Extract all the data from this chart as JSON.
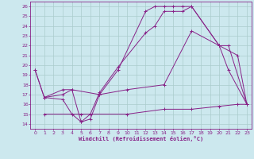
{
  "xlabel": "Windchill (Refroidissement éolien,°C)",
  "background_color": "#cce8ee",
  "grid_color": "#aacccc",
  "line_color": "#882288",
  "xlim": [
    -0.5,
    23.5
  ],
  "ylim": [
    13.5,
    26.5
  ],
  "xticks": [
    0,
    1,
    2,
    3,
    4,
    5,
    6,
    7,
    8,
    9,
    10,
    11,
    12,
    13,
    14,
    15,
    16,
    17,
    18,
    19,
    20,
    21,
    22,
    23
  ],
  "yticks": [
    14,
    15,
    16,
    17,
    18,
    19,
    20,
    21,
    22,
    23,
    24,
    25,
    26
  ],
  "line1_x": [
    0,
    1,
    3,
    4,
    5,
    6,
    7,
    9,
    12,
    13,
    14,
    15,
    16,
    17,
    20,
    21,
    23
  ],
  "line1_y": [
    19.5,
    16.7,
    16.5,
    15.0,
    14.2,
    14.5,
    17.0,
    19.5,
    25.5,
    26.0,
    26.0,
    26.0,
    26.0,
    26.0,
    22.0,
    19.5,
    16.0
  ],
  "line2_x": [
    0,
    1,
    3,
    4,
    5,
    6,
    7,
    9,
    12,
    13,
    14,
    15,
    16,
    17,
    20,
    21,
    23
  ],
  "line2_y": [
    19.5,
    16.7,
    17.5,
    17.5,
    14.2,
    15.0,
    17.2,
    19.8,
    23.3,
    24.0,
    25.5,
    25.5,
    25.5,
    26.0,
    22.0,
    22.0,
    16.0
  ],
  "line3_x": [
    1,
    3,
    4,
    7,
    10,
    14,
    17,
    20,
    22,
    23
  ],
  "line3_y": [
    16.7,
    17.0,
    17.5,
    17.0,
    17.5,
    18.0,
    23.5,
    22.0,
    21.0,
    16.0
  ],
  "line4_x": [
    1,
    5,
    10,
    14,
    17,
    20,
    22,
    23
  ],
  "line4_y": [
    15.0,
    15.0,
    15.0,
    15.5,
    15.5,
    15.8,
    16.0,
    16.0
  ]
}
